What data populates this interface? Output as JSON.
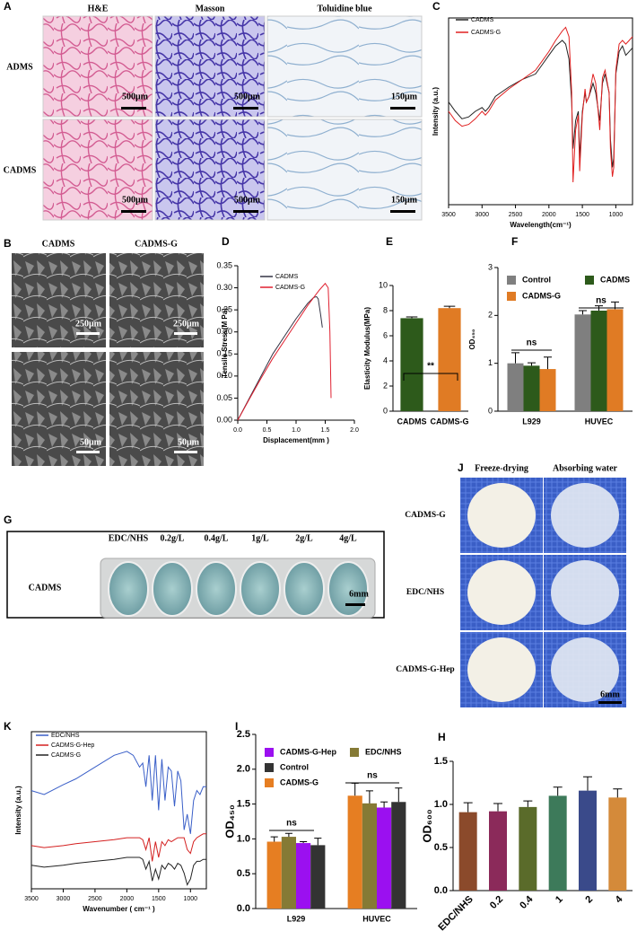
{
  "figure": {
    "A": {
      "panel": "A",
      "columns": [
        "H&E",
        "Masson",
        "Toluidine blue"
      ],
      "rows": [
        "ADMS",
        "CADMS"
      ],
      "scale_bars": [
        [
          "500μm",
          "500μm",
          "150μm"
        ],
        [
          "500μm",
          "500μm",
          "150μm"
        ]
      ]
    },
    "B": {
      "panel": "B",
      "columns": [
        "CADMS",
        "CADMS-G"
      ],
      "scale_bars": [
        [
          "250μm",
          "250μm"
        ],
        [
          "50μm",
          "50μm"
        ]
      ]
    },
    "G": {
      "panel": "G",
      "columns": [
        "EDC/NHS",
        "0.2g/L",
        "0.4g/L",
        "1g/L",
        "2g/L",
        "4g/L"
      ],
      "row": "CADMS",
      "scale_bar": "6mm"
    },
    "J": {
      "panel": "J",
      "columns": [
        "Freeze-drying",
        "Absorbing water"
      ],
      "rows": [
        "CADMS-G",
        "EDC/NHS",
        "CADMS-G-Hep"
      ],
      "scale_bar": "6mm"
    }
  },
  "chart_data": [
    {
      "panel": "C",
      "type": "line",
      "xlabel": "Wavelength(cm⁻¹)",
      "ylabel": "Intensity (a.u.)",
      "xlim": [
        3500,
        750
      ],
      "xticks": [
        3500,
        3000,
        2500,
        2000,
        1500,
        1000
      ],
      "ylim": [
        0,
        100
      ],
      "x": [
        3500,
        3400,
        3300,
        3200,
        3100,
        3000,
        2950,
        2900,
        2800,
        2600,
        2400,
        2200,
        2100,
        2000,
        1900,
        1800,
        1750,
        1700,
        1660,
        1640,
        1600,
        1560,
        1540,
        1500,
        1460,
        1440,
        1400,
        1340,
        1300,
        1240,
        1200,
        1160,
        1100,
        1080,
        1050,
        1030,
        1000,
        950,
        900,
        850,
        800,
        750
      ],
      "series": [
        {
          "name": "CADMS",
          "color": "#222222",
          "values": [
            55,
            50,
            46,
            47,
            50,
            52,
            50,
            52,
            58,
            63,
            67,
            70,
            75,
            80,
            85,
            88,
            86,
            78,
            55,
            30,
            45,
            50,
            25,
            50,
            60,
            55,
            58,
            65,
            60,
            45,
            65,
            70,
            60,
            35,
            20,
            25,
            70,
            82,
            85,
            80,
            82,
            84
          ]
        },
        {
          "name": "CADMS-G",
          "color": "#e02020",
          "values": [
            50,
            45,
            42,
            43,
            46,
            50,
            48,
            50,
            56,
            62,
            67,
            72,
            77,
            82,
            88,
            93,
            95,
            90,
            60,
            12,
            40,
            48,
            18,
            48,
            62,
            55,
            58,
            70,
            65,
            40,
            68,
            72,
            60,
            30,
            15,
            20,
            72,
            86,
            88,
            86,
            88,
            90
          ]
        }
      ]
    },
    {
      "panel": "D",
      "type": "line",
      "xlabel": "Displacement(mm )",
      "ylabel": "Tensile Stress(M Pa)",
      "xlim": [
        0,
        2
      ],
      "ylim": [
        0,
        0.35
      ],
      "xticks": [
        {
          "value": 0,
          "label": "0.0"
        },
        0.5,
        {
          "value": 1,
          "label": "1.0"
        },
        1.5,
        {
          "value": 2,
          "label": "2.0"
        }
      ],
      "yticks": [
        {
          "value": 0,
          "label": "0.00"
        },
        0.05,
        {
          "value": 0.1,
          "label": "0.10"
        },
        0.15,
        {
          "value": 0.2,
          "label": "0.20"
        },
        0.25,
        {
          "value": 0.3,
          "label": "0.30"
        },
        0.35
      ],
      "series": [
        {
          "name": "CADMS",
          "color": "#333344",
          "x": [
            0,
            0.2,
            0.4,
            0.6,
            0.8,
            1.0,
            1.2,
            1.3,
            1.35,
            1.38,
            1.42,
            1.45
          ],
          "values": [
            0,
            0.05,
            0.1,
            0.15,
            0.19,
            0.23,
            0.265,
            0.278,
            0.28,
            0.275,
            0.24,
            0.21
          ]
        },
        {
          "name": "CADMS-G",
          "color": "#e02030",
          "x": [
            0,
            0.2,
            0.4,
            0.6,
            0.8,
            1.0,
            1.2,
            1.4,
            1.5,
            1.55,
            1.58,
            1.6
          ],
          "values": [
            0,
            0.048,
            0.095,
            0.14,
            0.18,
            0.22,
            0.26,
            0.295,
            0.31,
            0.3,
            0.2,
            0.05
          ]
        }
      ]
    },
    {
      "panel": "E",
      "type": "bar",
      "ylabel": "Elasticity Modulus(MPa)",
      "ylim": [
        0,
        10
      ],
      "yticks": [
        0,
        2,
        4,
        6,
        8,
        10
      ],
      "categories": [
        "CADMS",
        "CADMS-G"
      ],
      "values": [
        7.4,
        8.2
      ],
      "errors": [
        0.1,
        0.15
      ],
      "colors": [
        "#2d5a1b",
        "#e07b24"
      ],
      "annotations": [
        "**"
      ]
    },
    {
      "panel": "F",
      "type": "bar",
      "ylabel": "OD₄₅₀",
      "ylim": [
        0,
        3
      ],
      "yticks": [
        0,
        1,
        2,
        3
      ],
      "categories": [
        "L929",
        "HUVEC"
      ],
      "series": [
        {
          "name": "Control",
          "color": "#7f7f7f",
          "values": [
            1.0,
            2.02
          ],
          "errors": [
            0.22,
            0.08
          ]
        },
        {
          "name": "CADMS",
          "color": "#2d5a1b",
          "values": [
            0.95,
            2.1
          ],
          "errors": [
            0.06,
            0.1
          ]
        },
        {
          "name": "CADMS-G",
          "color": "#e07b24",
          "values": [
            0.88,
            2.13
          ],
          "errors": [
            0.25,
            0.15
          ]
        }
      ],
      "annotations": [
        "ns",
        "ns"
      ]
    },
    {
      "panel": "K",
      "type": "line",
      "xlabel": "Wavenumber ( cm⁻¹ )",
      "ylabel": "Intensity (a.u.)",
      "xlim": [
        3500,
        750
      ],
      "xticks": [
        3500,
        3000,
        2500,
        2000,
        1500,
        1000
      ],
      "ylim": [
        0,
        80
      ],
      "x": [
        3500,
        3300,
        3000,
        2800,
        2500,
        2200,
        2000,
        1900,
        1800,
        1750,
        1700,
        1650,
        1600,
        1550,
        1500,
        1450,
        1400,
        1350,
        1300,
        1250,
        1200,
        1150,
        1100,
        1050,
        1000,
        950,
        900,
        850,
        800,
        750
      ],
      "series": [
        {
          "name": "EDC/NHS",
          "color": "#3a5fc8",
          "values": [
            50,
            48,
            53,
            56,
            62,
            68,
            70,
            68,
            62,
            64,
            52,
            68,
            45,
            68,
            40,
            66,
            45,
            62,
            60,
            42,
            60,
            55,
            30,
            38,
            28,
            45,
            50,
            48,
            52,
            52
          ]
        },
        {
          "name": "CADMS-G-Hep",
          "color": "#d42020",
          "values": [
            22,
            21,
            22,
            23,
            24,
            25,
            26,
            26,
            26,
            25,
            20,
            26,
            14,
            24,
            16,
            24,
            22,
            25,
            24,
            25,
            26,
            26,
            26,
            20,
            18,
            24,
            26,
            27,
            28,
            28
          ]
        },
        {
          "name": "CADMS-G",
          "color": "#222222",
          "values": [
            12,
            11,
            12,
            13,
            14,
            15,
            16,
            16,
            16,
            15,
            10,
            14,
            4,
            10,
            5,
            12,
            10,
            13,
            12,
            10,
            13,
            12,
            8,
            2,
            5,
            12,
            14,
            14,
            15,
            15
          ]
        }
      ]
    },
    {
      "panel": "I",
      "type": "bar",
      "ylabel": "OD₄₅₀",
      "ylim": [
        0,
        2.5
      ],
      "yticks": [
        {
          "value": 0,
          "label": "0.0"
        },
        0.5,
        {
          "value": 1,
          "label": "1.0"
        },
        1.5,
        {
          "value": 2,
          "label": "2.0"
        },
        2.5
      ],
      "categories": [
        "L929",
        "HUVEC"
      ],
      "series": [
        {
          "name": "CADMS-G",
          "color": "#e67e22",
          "values": [
            0.96,
            1.62
          ],
          "errors": [
            0.07,
            0.18
          ]
        },
        {
          "name": "EDC/NHS",
          "color": "#857a35",
          "values": [
            1.03,
            1.51
          ],
          "errors": [
            0.05,
            0.18
          ]
        },
        {
          "name": "CADMS-G-Hep",
          "color": "#9b10f0",
          "values": [
            0.94,
            1.45
          ],
          "errors": [
            0.02,
            0.08
          ]
        },
        {
          "name": "Control",
          "color": "#333333",
          "values": [
            0.91,
            1.53
          ],
          "errors": [
            0.1,
            0.2
          ]
        }
      ],
      "annotations": [
        "ns",
        "ns"
      ]
    },
    {
      "panel": "H",
      "type": "bar",
      "ylabel": "OD₆₀₀",
      "ylim": [
        0,
        1.5
      ],
      "yticks": [
        {
          "value": 0,
          "label": "0.0"
        },
        0.5,
        {
          "value": 1,
          "label": "1.0"
        },
        1.5
      ],
      "categories": [
        "EDC/NHS",
        "0.2",
        "0.4",
        "1",
        "2",
        "4"
      ],
      "values": [
        0.91,
        0.92,
        0.97,
        1.1,
        1.16,
        1.08
      ],
      "errors": [
        0.11,
        0.09,
        0.07,
        0.1,
        0.16,
        0.1
      ],
      "colors": [
        "#8b4a2b",
        "#8b2a5a",
        "#5a6b2a",
        "#3d7a5a",
        "#3a4a8a",
        "#d48a3a"
      ]
    }
  ]
}
